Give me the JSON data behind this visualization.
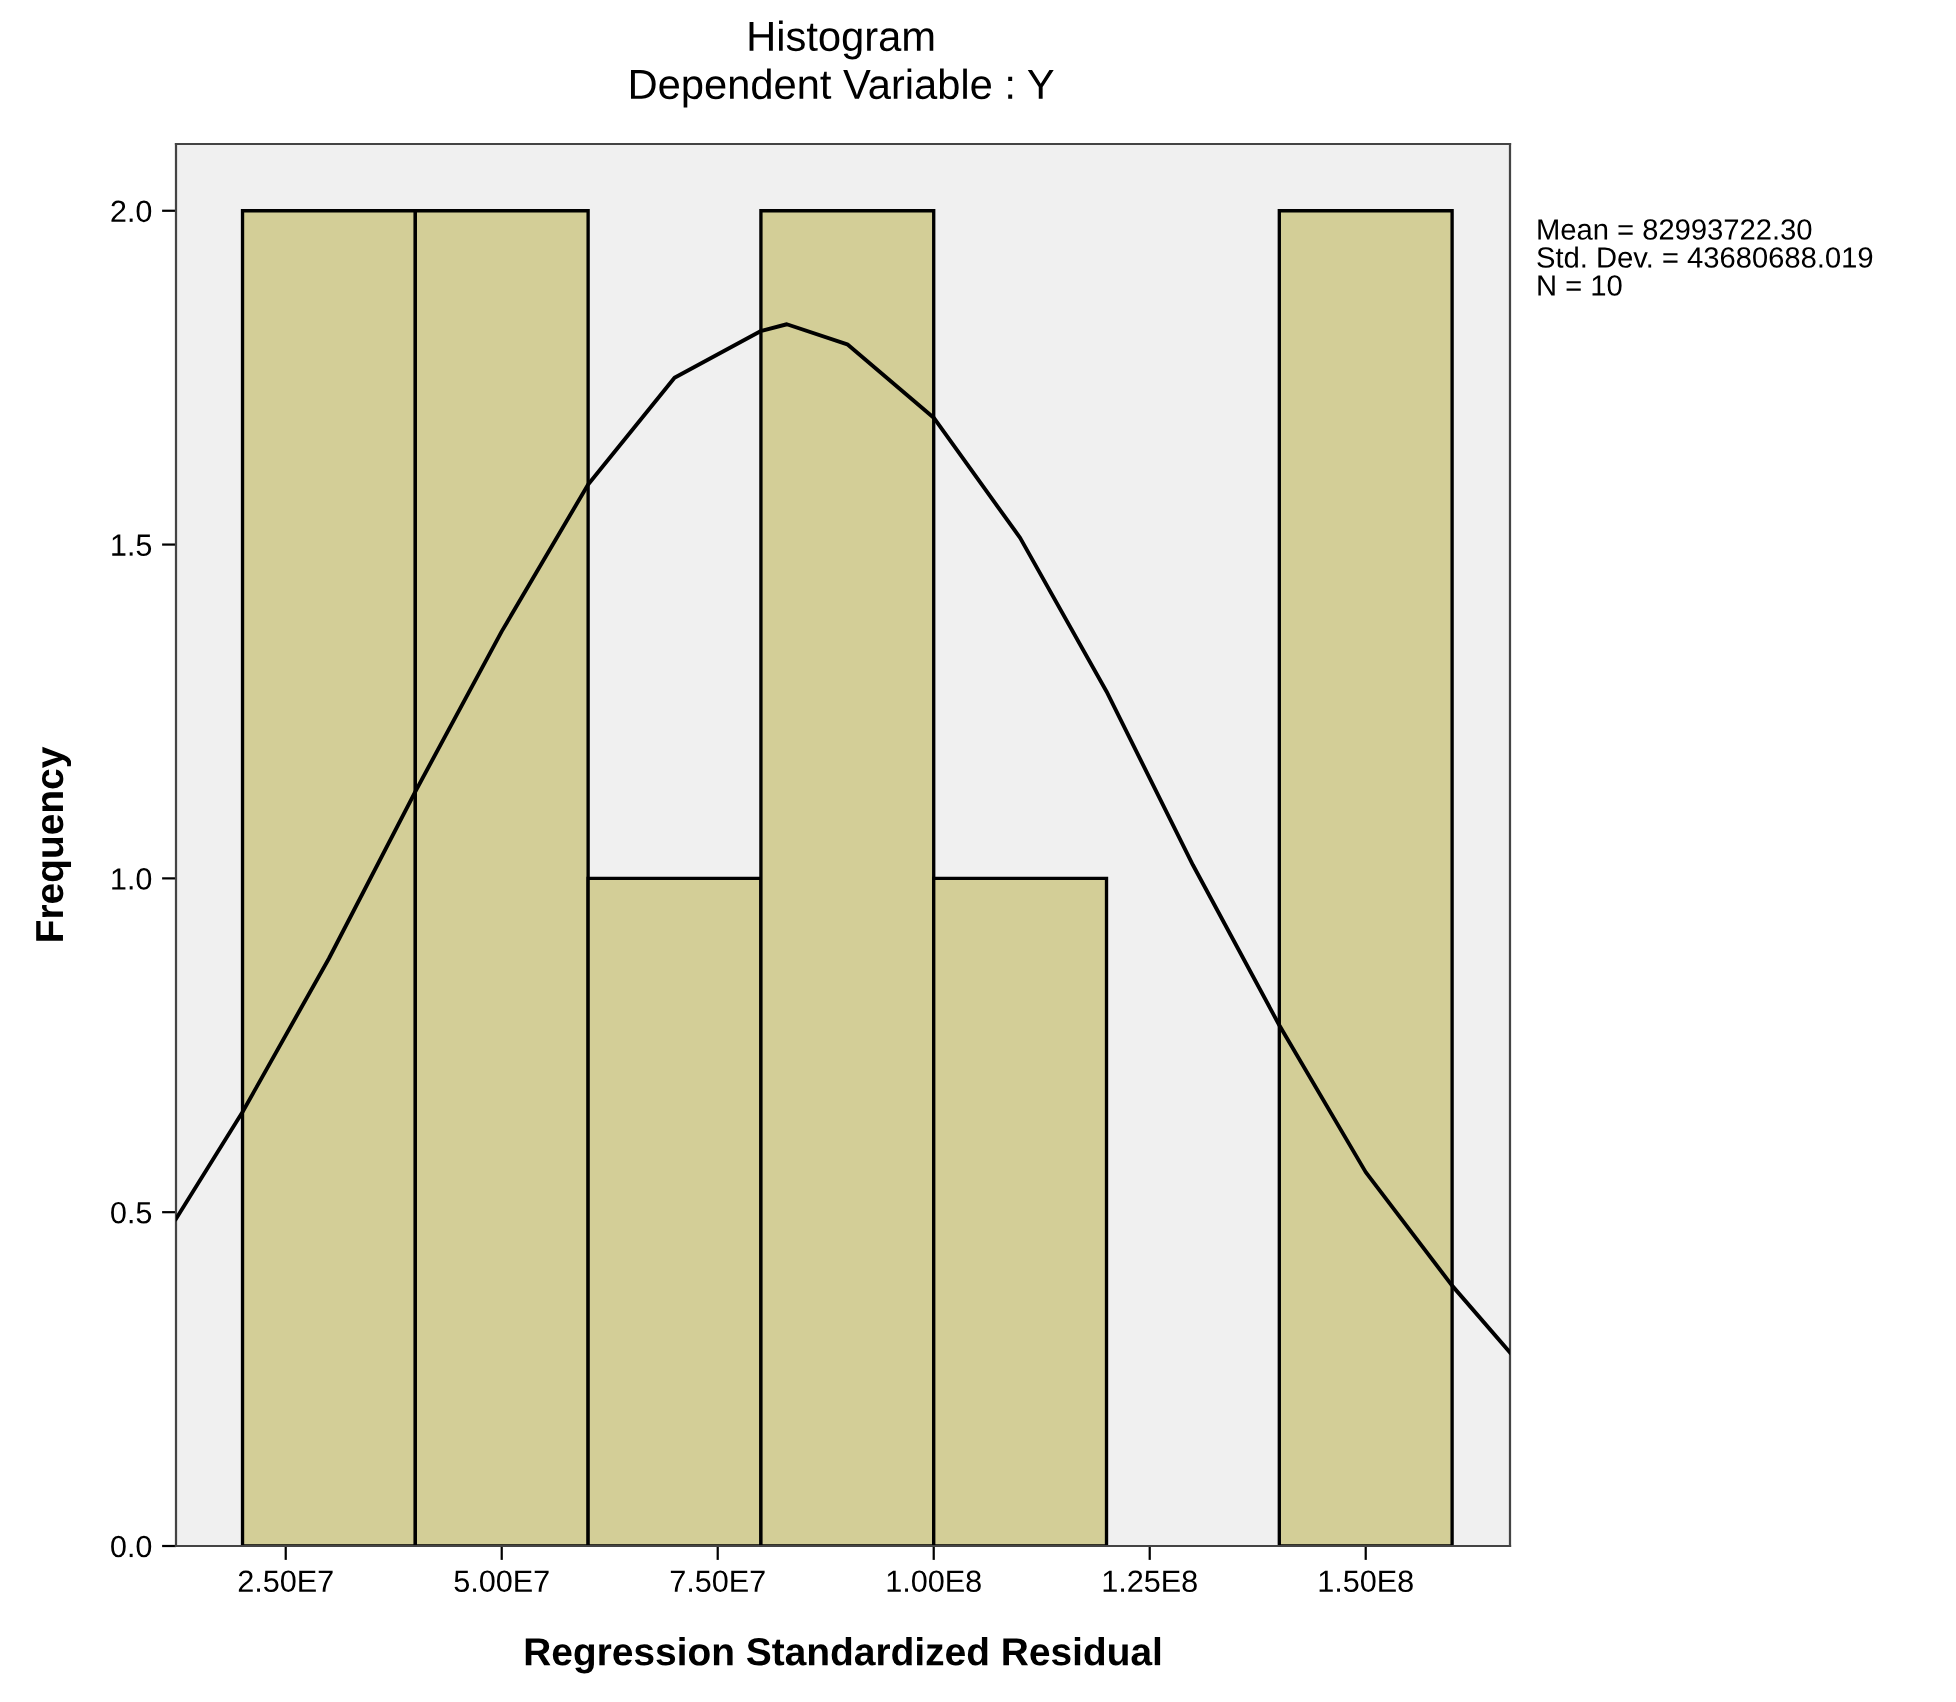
{
  "chart_data": {
    "type": "histogram",
    "title": "Histogram",
    "subtitle": "Dependent Variable : Y",
    "xlabel": "Regression Standardized Residual",
    "ylabel": "Frequency",
    "bins": [
      20000000,
      40000000,
      60000000,
      80000000,
      100000000,
      120000000,
      140000000,
      160000000
    ],
    "values": [
      2,
      2,
      1,
      2,
      1,
      0,
      2
    ],
    "color": "#d3ce97",
    "series": [
      {
        "type": "line",
        "color": "#000000",
        "x": [
          12300000,
          20000000,
          30000000,
          40000000,
          50000000,
          60000000,
          70000000,
          80000000,
          83000000,
          90000000,
          100000000,
          110000000,
          120000000,
          130000000,
          140000000,
          150000000,
          160000000,
          166700000
        ],
        "values": [
          0.49,
          0.65,
          0.88,
          1.13,
          1.37,
          1.59,
          1.75,
          1.82,
          1.83,
          1.8,
          1.69,
          1.51,
          1.28,
          1.02,
          0.78,
          0.56,
          0.39,
          0.29
        ]
      }
    ],
    "xlim": [
      12300000,
      166700000
    ],
    "ylim": [
      0,
      2.1
    ],
    "xticks": [
      {
        "value": 25000000,
        "label": "2.50E7"
      },
      {
        "value": 50000000,
        "label": "5.00E7"
      },
      {
        "value": 75000000,
        "label": "7.50E7"
      },
      {
        "value": 100000000,
        "label": "1.00E8"
      },
      {
        "value": 125000000,
        "label": "1.25E8"
      },
      {
        "value": 150000000,
        "label": "1.50E8"
      }
    ],
    "yticks": [
      {
        "value": 0,
        "label": "0.0"
      },
      {
        "value": 0.5,
        "label": "0.5"
      },
      {
        "value": 1,
        "label": "1.0"
      },
      {
        "value": 1.5,
        "label": "1.5"
      },
      {
        "value": 2,
        "label": "2.0"
      }
    ],
    "annotations": [
      "Mean = 82993722.30",
      "Std. Dev. = 43680688.019",
      "N = 10"
    ],
    "grid": false,
    "legend": false
  }
}
